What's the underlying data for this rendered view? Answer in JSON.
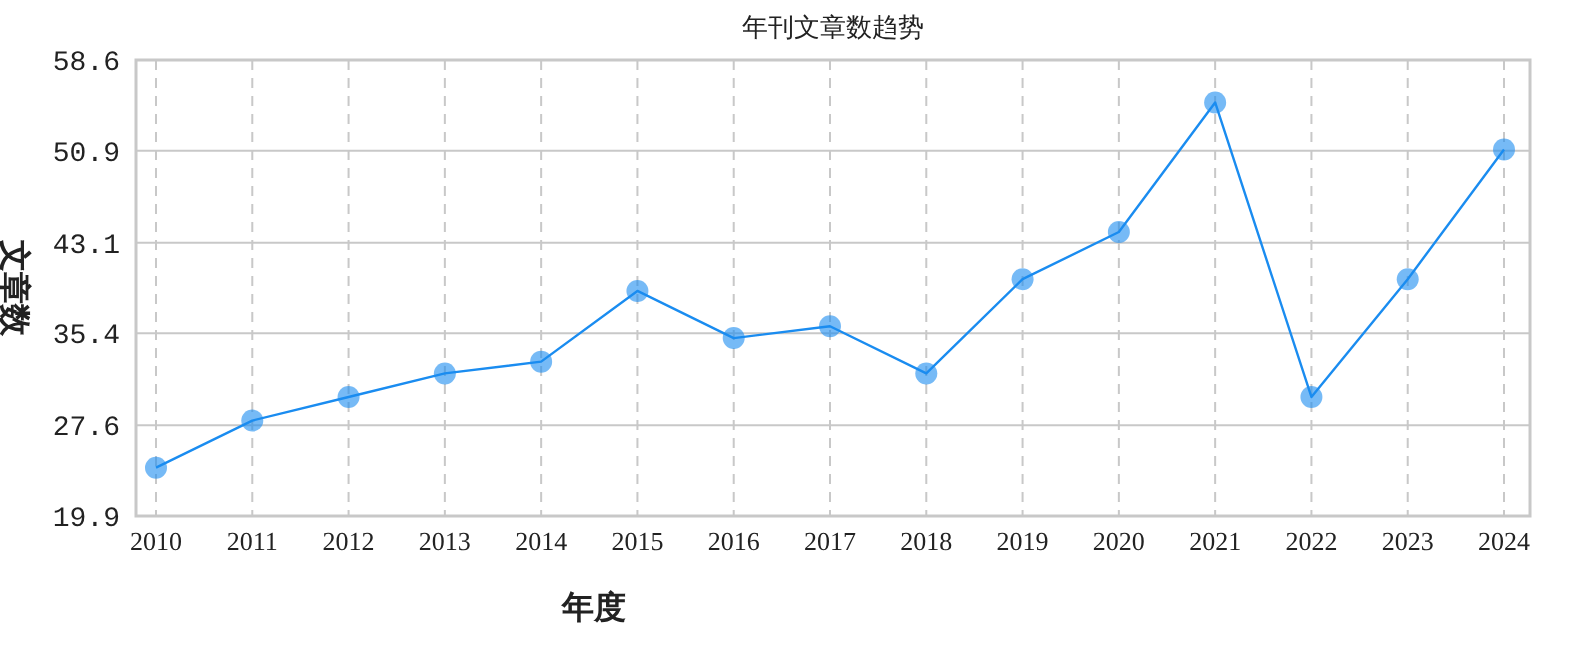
{
  "chart_data": {
    "type": "line",
    "title": "年刊文章数趋势",
    "xlabel": "年度",
    "ylabel": "文章数",
    "categories": [
      "2010",
      "2011",
      "2012",
      "2013",
      "2014",
      "2015",
      "2016",
      "2017",
      "2018",
      "2019",
      "2020",
      "2021",
      "2022",
      "2023",
      "2024"
    ],
    "series": [
      {
        "color": "#1a8cf0",
        "values": [
          24,
          28,
          30,
          32,
          33,
          39,
          35,
          36,
          32,
          40,
          44,
          55,
          30,
          40,
          51
        ]
      }
    ],
    "ylim": [
      19.9,
      58.6
    ],
    "yticks": [
      19.9,
      27.6,
      35.4,
      43.1,
      50.9,
      58.6
    ],
    "grid": true,
    "marker": "circle",
    "line_style": "solid"
  }
}
